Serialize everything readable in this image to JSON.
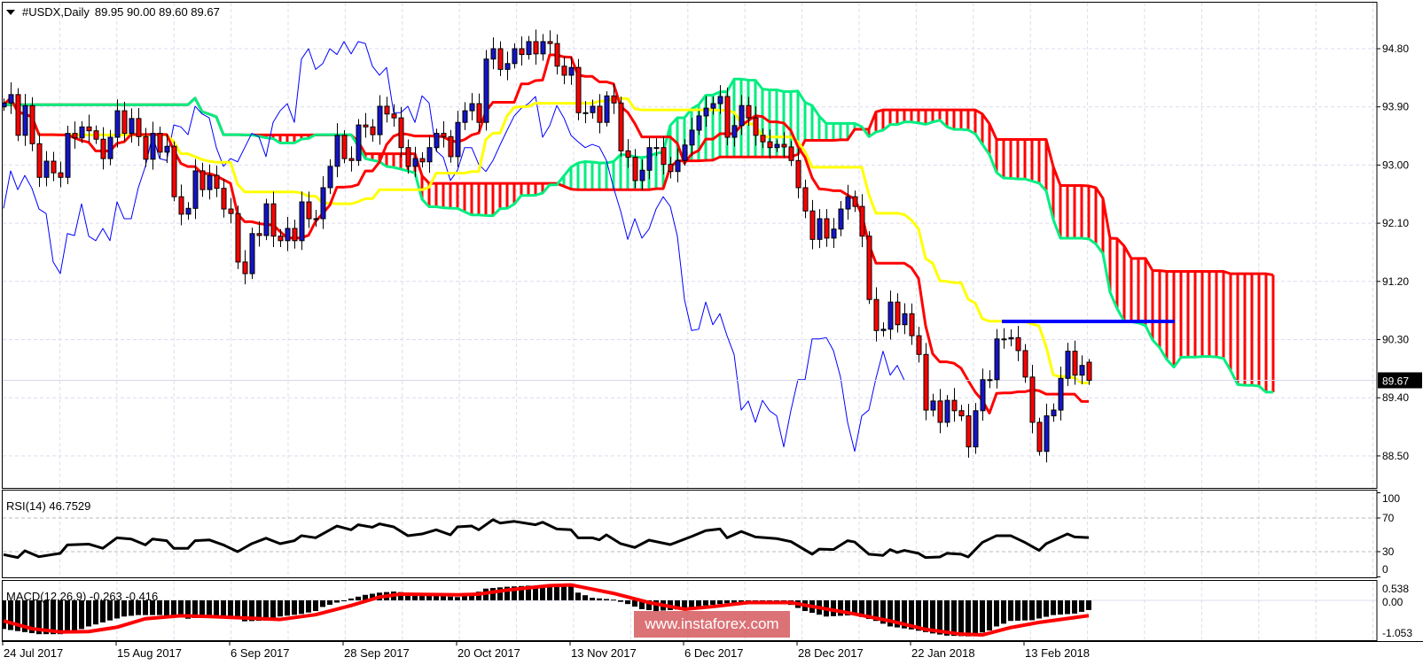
{
  "header": {
    "menu_icon": "triangle-down-icon",
    "symbol": "#USDX,Daily",
    "ohlc": "89.95 90.00 89.60 89.67"
  },
  "watermark": "www.instaforex.com",
  "colors": {
    "bull_candle": "#1414c8",
    "bear_candle": "#ff0000",
    "tenkan": "#ff0000",
    "kijun": "#ffff00",
    "chikou": "#0000ff",
    "span_a": "#00ee80",
    "span_b": "#ff0000",
    "hline": "#0000ff",
    "rsi": "#000000",
    "macd_hist": "#000000",
    "macd_signal": "#ff0000",
    "grid": "#dcdcf0"
  },
  "chart_data": {
    "type": "candlestick",
    "title": "#USDX,Daily",
    "price_axis": {
      "ticks": [
        "94.80",
        "93.90",
        "93.00",
        "92.10",
        "91.20",
        "90.30",
        "89.40",
        "88.50"
      ]
    },
    "current_price": "89.67",
    "horizontal_line_price": 90.58,
    "date_labels": [
      "24 Jul 2017",
      "15 Aug 2017",
      "6 Sep 2017",
      "28 Sep 2017",
      "20 Oct 2017",
      "13 Nov 2017",
      "6 Dec 2017",
      "28 Dec 2017",
      "22 Jan 2018",
      "13 Feb 2018"
    ],
    "date_label_bars": [
      0,
      16,
      32,
      48,
      64,
      80,
      96,
      112,
      128,
      144
    ],
    "first_open": 93.9,
    "last_bar": {
      "open": 89.95,
      "high": 90.0,
      "low": 89.6,
      "close": 89.67
    },
    "close": [
      93.96,
      94.09,
      93.46,
      93.92,
      93.33,
      92.81,
      93.06,
      92.88,
      92.81,
      93.49,
      93.42,
      93.59,
      93.53,
      93.4,
      93.1,
      93.43,
      93.84,
      93.49,
      93.72,
      93.44,
      93.09,
      93.49,
      93.2,
      93.29,
      92.51,
      92.24,
      92.33,
      92.91,
      92.62,
      92.84,
      92.64,
      92.32,
      92.25,
      91.5,
      91.32,
      91.94,
      91.91,
      92.4,
      91.9,
      91.83,
      92.02,
      91.83,
      92.43,
      92.17,
      92.17,
      92.65,
      92.98,
      93.46,
      93.1,
      93.07,
      93.62,
      93.59,
      93.47,
      93.91,
      93.79,
      93.73,
      93.27,
      92.98,
      93.1,
      93.05,
      93.27,
      93.49,
      93.44,
      93.13,
      93.66,
      93.84,
      93.95,
      93.66,
      94.64,
      94.8,
      94.48,
      94.57,
      94.8,
      94.71,
      94.91,
      94.72,
      94.91,
      94.88,
      94.53,
      94.39,
      94.51,
      93.81,
      93.81,
      93.91,
      93.66,
      94.07,
      93.96,
      93.22,
      93.12,
      92.76,
      92.92,
      93.27,
      93.27,
      93.01,
      92.9,
      93.07,
      93.31,
      93.54,
      93.76,
      93.88,
      93.95,
      94.06,
      93.43,
      93.61,
      93.92,
      93.73,
      93.46,
      93.36,
      93.27,
      93.32,
      93.28,
      93.07,
      92.65,
      92.29,
      91.85,
      92.17,
      91.87,
      92.01,
      92.32,
      92.51,
      92.36,
      91.9,
      90.92,
      90.44,
      90.46,
      90.88,
      90.53,
      90.7,
      90.36,
      90.07,
      89.21,
      89.35,
      89.02,
      89.36,
      89.2,
      89.12,
      88.64,
      89.2,
      89.68,
      89.68,
      90.31,
      90.31,
      90.33,
      90.13,
      89.72,
      89.02,
      88.57,
      89.12,
      89.21,
      89.7,
      90.12,
      89.75,
      89.9,
      89.67
    ],
    "ichimoku": {
      "tenkan": 9,
      "kijun": 26,
      "senkou_b": 52
    },
    "rsi": {
      "label": "RSI(14) 46.7529",
      "ticks": [
        "100",
        "70",
        "30",
        "0"
      ],
      "levels": [
        70,
        30
      ],
      "bars": [
        0,
        2,
        3,
        5,
        8,
        9,
        12,
        14,
        16,
        18,
        20,
        21,
        23,
        24,
        26,
        27,
        29,
        31,
        33,
        35,
        37,
        39,
        41,
        42,
        44,
        47,
        49,
        50,
        52,
        53,
        55,
        57,
        59,
        61,
        63,
        64,
        66,
        67,
        69,
        70,
        72,
        75,
        76,
        78,
        80,
        81,
        83,
        84,
        85,
        87,
        89,
        91,
        94,
        97,
        99,
        101,
        102,
        104,
        106,
        109,
        111,
        114,
        115,
        117,
        119,
        120,
        122,
        124,
        125,
        126,
        127,
        129,
        130,
        132,
        133,
        135,
        136,
        138,
        140,
        142,
        144,
        146,
        147,
        150,
        151,
        153
      ],
      "values": [
        26.5,
        23,
        31,
        24,
        28,
        38,
        39,
        34,
        46.5,
        45,
        38,
        45,
        43,
        34,
        34,
        43,
        44,
        38,
        30,
        39.5,
        46,
        39.5,
        43,
        49,
        46.5,
        60.5,
        56,
        62,
        59,
        63,
        59.5,
        49,
        51,
        56,
        50,
        59.5,
        60.5,
        56,
        68,
        64,
        66,
        62,
        65,
        57,
        56,
        46.5,
        46.5,
        44,
        50,
        39.5,
        35,
        43.7,
        38.4,
        48,
        55,
        57,
        46.5,
        54,
        47.5,
        45.5,
        42,
        27,
        33,
        32.5,
        43,
        41.5,
        27,
        25.5,
        32.5,
        29,
        31.5,
        28,
        23,
        23.7,
        28,
        27,
        23.7,
        41,
        49,
        49,
        41,
        31.5,
        39.5,
        51,
        47.5,
        46.75
      ]
    },
    "macd": {
      "label": "MACD(12,26,9) -0.263 -0.416",
      "ticks": [
        "0.538",
        "0.00",
        "-1.053"
      ],
      "range": [
        -1.053,
        0.538
      ],
      "hist_bars": [
        0,
        5,
        8,
        10,
        12,
        14,
        17,
        19,
        22,
        24,
        26,
        29,
        32,
        34,
        37,
        39,
        42,
        44,
        45,
        47,
        48,
        49,
        51,
        53,
        55,
        57,
        59,
        61,
        64,
        66,
        68,
        71,
        74,
        76,
        80,
        81,
        83,
        86,
        88,
        90,
        92,
        95,
        97,
        99,
        102,
        105,
        110,
        113,
        116,
        120,
        123,
        125,
        128,
        131,
        133,
        136,
        139,
        140,
        142,
        145,
        148,
        151,
        153
      ],
      "hist_values": [
        -0.78,
        -0.92,
        -0.92,
        -0.85,
        -0.71,
        -0.6,
        -0.44,
        -0.4,
        -0.4,
        -0.44,
        -0.5,
        -0.44,
        -0.44,
        -0.57,
        -0.55,
        -0.44,
        -0.37,
        -0.29,
        -0.18,
        -0.06,
        0,
        0.05,
        0.15,
        0.21,
        0.24,
        0.21,
        0.17,
        0.13,
        0.09,
        0.15,
        0.32,
        0.37,
        0.4,
        0.38,
        0.38,
        0.21,
        0.07,
        0.02,
        -0.1,
        -0.24,
        -0.29,
        -0.25,
        -0.19,
        -0.14,
        -0.08,
        -0.04,
        -0.04,
        -0.29,
        -0.44,
        -0.4,
        -0.56,
        -0.71,
        -0.79,
        -0.9,
        -0.96,
        -0.98,
        -0.82,
        -0.71,
        -0.56,
        -0.54,
        -0.4,
        -0.36,
        -0.263
      ],
      "signal_bars": [
        0,
        4,
        8,
        12,
        16,
        20,
        25,
        29,
        34,
        39,
        44,
        49,
        53,
        56,
        64,
        67,
        71,
        77,
        80,
        86,
        91,
        96,
        100,
        105,
        111,
        115,
        120,
        125,
        130,
        135,
        138,
        142,
        146,
        153
      ],
      "signal_values": [
        -0.56,
        -0.77,
        -0.86,
        -0.85,
        -0.73,
        -0.5,
        -0.42,
        -0.44,
        -0.48,
        -0.52,
        -0.39,
        -0.14,
        0.09,
        0.17,
        0.15,
        0.17,
        0.28,
        0.4,
        0.42,
        0.19,
        -0.06,
        -0.24,
        -0.17,
        -0.06,
        -0.06,
        -0.2,
        -0.37,
        -0.56,
        -0.79,
        -0.92,
        -0.94,
        -0.74,
        -0.6,
        -0.416
      ]
    }
  }
}
